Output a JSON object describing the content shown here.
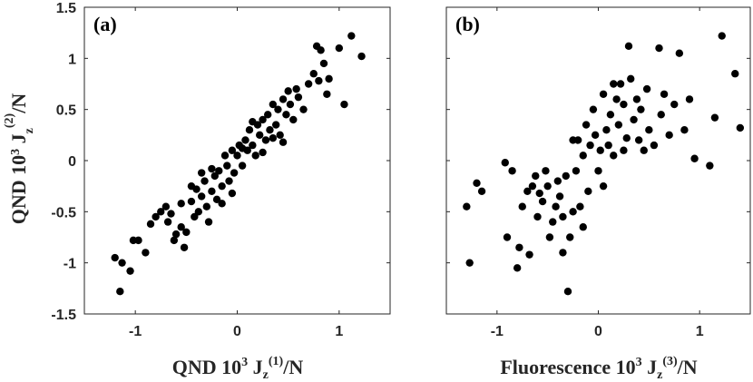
{
  "figure": {
    "ylabel": "QND 10³ J_z^(2)/N",
    "ylabel_parts": {
      "main": "QND 10",
      "exp": "3",
      "j": " J",
      "sub": "z",
      "sup": "(2)",
      "tail": "/N"
    }
  },
  "chart_data": [
    {
      "type": "scatter",
      "panel_label": "(a)",
      "xlabel": "QND 10³ J_z^(1)/N",
      "xlabel_parts": {
        "main": "QND 10",
        "exp": "3",
        "j": " J",
        "sub": "z",
        "sup": "(1)",
        "tail": "/N"
      },
      "xlim": [
        -1.5,
        1.5
      ],
      "ylim": [
        -1.5,
        1.5
      ],
      "x_ticks": [
        -1,
        0,
        1
      ],
      "x_tick_labels": [
        "-1",
        "0",
        "1"
      ],
      "y_ticks": [
        -1.5,
        -1,
        -0.5,
        0,
        0.5,
        1,
        1.5
      ],
      "y_tick_labels": [
        "-1.5",
        "-1",
        "-0.5",
        "0",
        "0.5",
        "1",
        "1.5"
      ],
      "grid": false,
      "marker_color": "#000000",
      "points": [
        [
          -1.2,
          -0.95
        ],
        [
          -1.15,
          -1.28
        ],
        [
          -1.13,
          -1.0
        ],
        [
          -1.05,
          -1.08
        ],
        [
          -1.02,
          -0.78
        ],
        [
          -0.97,
          -0.78
        ],
        [
          -0.9,
          -0.9
        ],
        [
          -0.85,
          -0.62
        ],
        [
          -0.8,
          -0.55
        ],
        [
          -0.75,
          -0.5
        ],
        [
          -0.7,
          -0.45
        ],
        [
          -0.68,
          -0.6
        ],
        [
          -0.65,
          -0.52
        ],
        [
          -0.62,
          -0.78
        ],
        [
          -0.6,
          -0.72
        ],
        [
          -0.55,
          -0.65
        ],
        [
          -0.52,
          -0.85
        ],
        [
          -0.5,
          -0.7
        ],
        [
          -0.45,
          -0.4
        ],
        [
          -0.42,
          -0.55
        ],
        [
          -0.4,
          -0.28
        ],
        [
          -0.38,
          -0.5
        ],
        [
          -0.35,
          -0.35
        ],
        [
          -0.32,
          -0.2
        ],
        [
          -0.3,
          -0.45
        ],
        [
          -0.28,
          -0.6
        ],
        [
          -0.25,
          -0.3
        ],
        [
          -0.22,
          -0.15
        ],
        [
          -0.2,
          -0.38
        ],
        [
          -0.18,
          -0.1
        ],
        [
          -0.15,
          -0.25
        ],
        [
          -0.12,
          0.05
        ],
        [
          -0.1,
          -0.05
        ],
        [
          -0.08,
          -0.2
        ],
        [
          -0.05,
          0.1
        ],
        [
          -0.03,
          -0.12
        ],
        [
          0.0,
          0.05
        ],
        [
          0.02,
          0.15
        ],
        [
          0.05,
          -0.05
        ],
        [
          0.08,
          0.2
        ],
        [
          0.1,
          0.1
        ],
        [
          0.12,
          0.3
        ],
        [
          0.15,
          0.15
        ],
        [
          0.18,
          0.05
        ],
        [
          0.2,
          0.35
        ],
        [
          0.22,
          0.25
        ],
        [
          0.25,
          0.4
        ],
        [
          0.28,
          0.2
        ],
        [
          0.3,
          0.45
        ],
        [
          0.32,
          0.3
        ],
        [
          0.35,
          0.55
        ],
        [
          0.38,
          0.35
        ],
        [
          0.4,
          0.5
        ],
        [
          0.42,
          0.25
        ],
        [
          0.45,
          0.6
        ],
        [
          0.48,
          0.45
        ],
        [
          0.5,
          0.68
        ],
        [
          0.52,
          0.55
        ],
        [
          0.55,
          0.4
        ],
        [
          0.58,
          0.7
        ],
        [
          0.6,
          0.62
        ],
        [
          0.65,
          0.5
        ],
        [
          0.7,
          0.75
        ],
        [
          0.75,
          0.85
        ],
        [
          0.78,
          1.12
        ],
        [
          0.8,
          0.78
        ],
        [
          0.82,
          1.08
        ],
        [
          0.85,
          0.95
        ],
        [
          0.88,
          0.65
        ],
        [
          0.9,
          0.8
        ],
        [
          1.0,
          1.1
        ],
        [
          1.05,
          0.55
        ],
        [
          1.12,
          1.22
        ],
        [
          1.22,
          1.02
        ],
        [
          -0.25,
          -0.08
        ],
        [
          -0.15,
          -0.42
        ],
        [
          0.05,
          0.12
        ],
        [
          0.25,
          0.08
        ],
        [
          -0.35,
          -0.12
        ],
        [
          0.15,
          0.38
        ],
        [
          -0.05,
          -0.32
        ],
        [
          0.35,
          0.22
        ],
        [
          -0.45,
          -0.25
        ],
        [
          0.45,
          0.18
        ],
        [
          -0.55,
          -0.42
        ]
      ]
    },
    {
      "type": "scatter",
      "panel_label": "(b)",
      "xlabel": "Fluorescence 10³ J_z^(3)/N",
      "xlabel_parts": {
        "main": "Fluorescence 10",
        "exp": "3",
        "j": " J",
        "sub": "z",
        "sup": "(3)",
        "tail": "/N"
      },
      "xlim": [
        -1.5,
        1.5
      ],
      "ylim": [
        -1.5,
        1.5
      ],
      "x_ticks": [
        -1,
        0,
        1
      ],
      "x_tick_labels": [
        "-1",
        "0",
        "1"
      ],
      "grid": false,
      "marker_color": "#000000",
      "points": [
        [
          -1.3,
          -0.45
        ],
        [
          -1.27,
          -1.0
        ],
        [
          -1.2,
          -0.22
        ],
        [
          -1.15,
          -0.3
        ],
        [
          -0.92,
          -0.02
        ],
        [
          -0.85,
          -0.1
        ],
        [
          -0.8,
          -1.05
        ],
        [
          -0.78,
          -0.85
        ],
        [
          -0.75,
          -0.45
        ],
        [
          -0.7,
          -0.3
        ],
        [
          -0.68,
          -0.92
        ],
        [
          -0.65,
          -0.25
        ],
        [
          -0.62,
          -0.15
        ],
        [
          -0.6,
          -0.55
        ],
        [
          -0.58,
          -0.32
        ],
        [
          -0.55,
          -0.4
        ],
        [
          -0.52,
          -0.1
        ],
        [
          -0.5,
          -0.25
        ],
        [
          -0.48,
          -0.75
        ],
        [
          -0.45,
          -0.6
        ],
        [
          -0.42,
          -0.45
        ],
        [
          -0.4,
          -0.2
        ],
        [
          -0.38,
          -0.35
        ],
        [
          -0.35,
          -0.55
        ],
        [
          -0.32,
          -0.15
        ],
        [
          -0.3,
          -1.28
        ],
        [
          -0.28,
          -0.75
        ],
        [
          -0.25,
          -0.5
        ],
        [
          -0.22,
          -0.1
        ],
        [
          -0.2,
          0.2
        ],
        [
          -0.18,
          -0.45
        ],
        [
          -0.15,
          0.05
        ],
        [
          -0.12,
          0.35
        ],
        [
          -0.1,
          -0.3
        ],
        [
          -0.08,
          0.15
        ],
        [
          -0.05,
          0.5
        ],
        [
          -0.03,
          0.25
        ],
        [
          0.0,
          -0.1
        ],
        [
          0.02,
          0.1
        ],
        [
          0.05,
          0.65
        ],
        [
          0.08,
          0.3
        ],
        [
          0.1,
          0.15
        ],
        [
          0.12,
          0.45
        ],
        [
          0.15,
          0.05
        ],
        [
          0.18,
          0.6
        ],
        [
          0.2,
          0.35
        ],
        [
          0.22,
          0.75
        ],
        [
          0.25,
          0.55
        ],
        [
          0.28,
          0.22
        ],
        [
          0.3,
          1.12
        ],
        [
          0.32,
          0.8
        ],
        [
          0.35,
          0.4
        ],
        [
          0.38,
          0.6
        ],
        [
          0.4,
          0.2
        ],
        [
          0.42,
          0.5
        ],
        [
          0.45,
          0.1
        ],
        [
          0.48,
          0.7
        ],
        [
          0.5,
          0.3
        ],
        [
          0.55,
          0.15
        ],
        [
          0.6,
          1.1
        ],
        [
          0.62,
          0.45
        ],
        [
          0.65,
          0.65
        ],
        [
          0.7,
          0.25
        ],
        [
          0.75,
          0.55
        ],
        [
          0.8,
          1.05
        ],
        [
          0.85,
          0.3
        ],
        [
          0.9,
          0.6
        ],
        [
          0.95,
          0.02
        ],
        [
          1.1,
          -0.05
        ],
        [
          1.15,
          0.42
        ],
        [
          1.22,
          1.22
        ],
        [
          1.35,
          0.85
        ],
        [
          1.4,
          0.32
        ],
        [
          -0.9,
          -0.75
        ],
        [
          -0.35,
          -0.9
        ],
        [
          -0.25,
          0.2
        ],
        [
          0.05,
          -0.25
        ],
        [
          0.15,
          0.75
        ],
        [
          0.25,
          0.1
        ],
        [
          -0.15,
          -0.65
        ]
      ]
    }
  ]
}
